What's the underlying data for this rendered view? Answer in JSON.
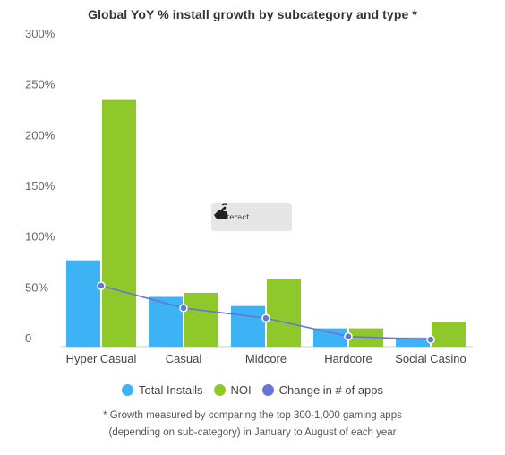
{
  "chart_data": {
    "type": "bar",
    "title": "Global YoY % install growth by subcategory and type *",
    "categories": [
      "Hyper Casual",
      "Casual",
      "Midcore",
      "Hardcore",
      "Social Casino"
    ],
    "series": [
      {
        "name": "Total Installs",
        "type": "bar",
        "color": "#3db2f5",
        "values": [
          85,
          49,
          40,
          18,
          9
        ]
      },
      {
        "name": "NOI",
        "type": "bar",
        "color": "#8fc82a",
        "values": [
          243,
          53,
          67,
          18,
          24
        ]
      },
      {
        "name": "Change in # of apps",
        "type": "line",
        "color": "#6775d8",
        "values": [
          60,
          38,
          28,
          10,
          7
        ]
      }
    ],
    "yticks": [
      "0",
      "50%",
      "100%",
      "150%",
      "200%",
      "250%",
      "300%"
    ],
    "ylim": [
      0,
      300
    ],
    "grid": false,
    "legend": "bottom"
  },
  "interact_button": {
    "label": "Interact",
    "icon": "hand-pointer-icon"
  },
  "footnote": {
    "line1": "* Growth measured by comparing the top 300-1,000 gaming apps",
    "line2": "(depending on sub-category) in January to August of each year"
  }
}
